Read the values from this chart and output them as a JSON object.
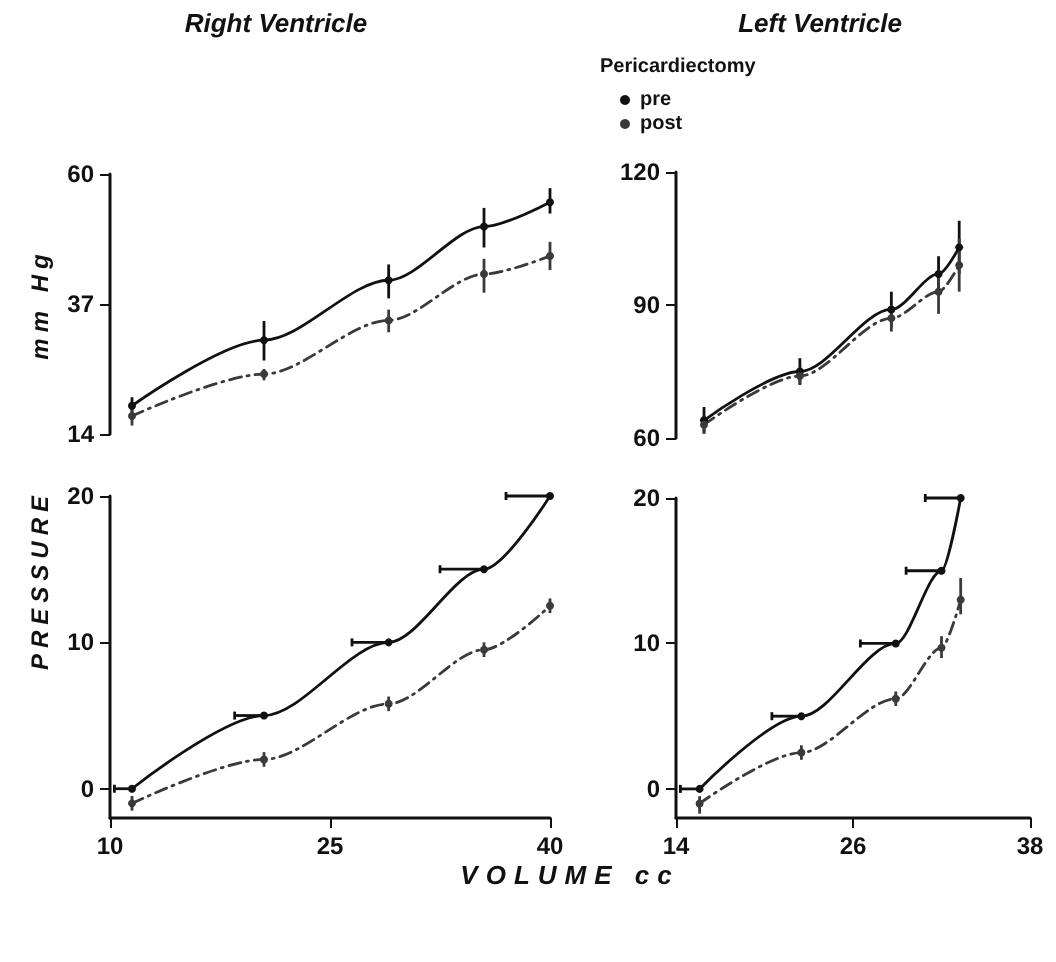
{
  "chart_data": [
    {
      "type": "line",
      "title": "Right Ventricle",
      "ylabel": "mm Hg",
      "x": [
        11.5,
        20.5,
        29,
        35.5,
        40
      ],
      "xlim": [
        10,
        40
      ],
      "ylim": [
        14,
        60
      ],
      "yticks": [
        14,
        37,
        60
      ],
      "tick_labels": "y",
      "marker": "circle",
      "grid": false,
      "series": [
        {
          "color": "#111111",
          "line_style": "solid",
          "values": [
            19,
            30.6,
            41.2,
            50.7,
            55
          ],
          "errors": [
            [
              17.5,
              20.5
            ],
            [
              27,
              34
            ],
            [
              38,
              44
            ],
            [
              47,
              54
            ],
            [
              53,
              57.5
            ]
          ]
        },
        {
          "color": "#3a3a3a",
          "line_style": "dashed",
          "values": [
            17.2,
            24.6,
            34.1,
            42.3,
            45.5
          ],
          "errors": [
            [
              15.5,
              18.5
            ],
            [
              23.5,
              25.5
            ],
            [
              32,
              36
            ],
            [
              39,
              45
            ],
            [
              43,
              48
            ]
          ]
        }
      ]
    },
    {
      "type": "line",
      "title": "Left Ventricle",
      "legend_title": "Pericardiectomy",
      "legend": "top left",
      "x": [
        15.9,
        22.4,
        28.6,
        31.8,
        33.2
      ],
      "xlim": [
        14,
        38
      ],
      "ylim": [
        60,
        120
      ],
      "yticks": [
        60,
        90,
        120
      ],
      "tick_labels": "y",
      "marker": "circle",
      "grid": false,
      "series": [
        {
          "name": "pre",
          "color": "#111111",
          "line_style": "solid",
          "values": [
            64,
            75,
            89,
            97,
            103
          ],
          "errors": [
            [
              61,
              67
            ],
            [
              72,
              78
            ],
            [
              85,
              93
            ],
            [
              93,
              101
            ],
            [
              97,
              109
            ]
          ]
        },
        {
          "name": "post",
          "color": "#3a3a3a",
          "line_style": "dashed",
          "values": [
            63,
            74,
            87,
            93,
            99
          ],
          "errors": [
            [
              61,
              65
            ],
            [
              72,
              76
            ],
            [
              84,
              90
            ],
            [
              88,
              98
            ],
            [
              93,
              105
            ]
          ]
        }
      ]
    },
    {
      "type": "line",
      "ylabel": "PRESSURE",
      "xlabel": "VOLUME cc",
      "x": [
        11.5,
        20.5,
        29,
        35.5,
        40
      ],
      "xlim": [
        10,
        40
      ],
      "xticks": [
        10,
        25,
        40
      ],
      "ylim": [
        -2,
        20
      ],
      "yticks": [
        0,
        10,
        20
      ],
      "marker": "circle",
      "grid": false,
      "series": [
        {
          "color": "#111111",
          "line_style": "solid",
          "values": [
            0,
            5,
            10,
            15,
            20
          ],
          "xerrors": [
            [
              10.3,
              11.5
            ],
            [
              18.5,
              20.5
            ],
            [
              26.5,
              29
            ],
            [
              32.5,
              35.5
            ],
            [
              37,
              40
            ]
          ]
        },
        {
          "color": "#3a3a3a",
          "line_style": "dashed",
          "values": [
            -1,
            2,
            5.8,
            9.5,
            12.5
          ],
          "errors": [
            [
              -1.5,
              -0.5
            ],
            [
              1.5,
              2.5
            ],
            [
              5.3,
              6.3
            ],
            [
              9,
              10
            ],
            [
              12,
              13
            ]
          ]
        }
      ]
    },
    {
      "type": "line",
      "x": [
        15.6,
        22.5,
        28.9,
        32,
        33.3
      ],
      "xlim": [
        14,
        38
      ],
      "xticks": [
        14,
        26,
        38
      ],
      "ylim": [
        -2,
        20
      ],
      "yticks": [
        0,
        10,
        20
      ],
      "marker": "circle",
      "grid": false,
      "series": [
        {
          "color": "#111111",
          "line_style": "solid",
          "values": [
            0,
            5,
            10,
            15,
            20
          ],
          "xerrors": [
            [
              14.3,
              15.6
            ],
            [
              20.5,
              22.5
            ],
            [
              26.5,
              28.9
            ],
            [
              29.6,
              32
            ],
            [
              30.9,
              33.3
            ]
          ]
        },
        {
          "color": "#3a3a3a",
          "line_style": "dashed",
          "values": [
            -1,
            2.5,
            6.2,
            9.7,
            13
          ],
          "errors": [
            [
              -1.7,
              -0.5
            ],
            [
              2,
              3
            ],
            [
              5.7,
              6.7
            ],
            [
              9,
              10.5
            ],
            [
              12,
              14.5
            ]
          ]
        }
      ]
    }
  ]
}
